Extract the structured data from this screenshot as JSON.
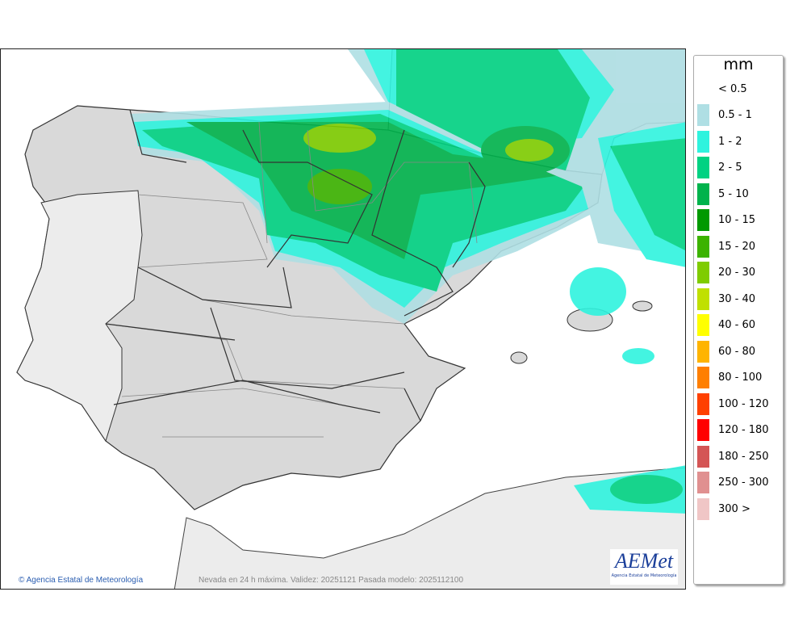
{
  "map": {
    "title": "Nevada en 24 h máxima. Validez: 20251121 Pasada modelo: 2025112100",
    "credit": "Agencia Estatal de Meteorología",
    "credit_symbol": "©",
    "logo_text": "AEMet",
    "logo_subtext": "Agencia Estatal de Meteorología"
  },
  "legend": {
    "unit": "mm",
    "items": [
      {
        "label": "< 0.5",
        "color": null
      },
      {
        "label": "0.5 - 1",
        "color": "#afdfe4"
      },
      {
        "label": "1 - 2",
        "color": "#2ff3de"
      },
      {
        "label": "2 - 5",
        "color": "#00d282"
      },
      {
        "label": "5 - 10",
        "color": "#00b34c"
      },
      {
        "label": "10 - 15",
        "color": "#009900"
      },
      {
        "label": "15 - 20",
        "color": "#3cb300"
      },
      {
        "label": "20 - 30",
        "color": "#7fcc00"
      },
      {
        "label": "30 - 40",
        "color": "#c0e000"
      },
      {
        "label": "40 - 60",
        "color": "#ffff00"
      },
      {
        "label": "60 - 80",
        "color": "#ffb400"
      },
      {
        "label": "80 - 100",
        "color": "#ff7f00"
      },
      {
        "label": "100 - 120",
        "color": "#ff4000"
      },
      {
        "label": "120 - 180",
        "color": "#ff0000"
      },
      {
        "label": "180 - 250",
        "color": "#d45555"
      },
      {
        "label": "250 - 300",
        "color": "#e09090"
      },
      {
        "label": "300 >",
        "color": "#f0c6c6"
      }
    ]
  }
}
